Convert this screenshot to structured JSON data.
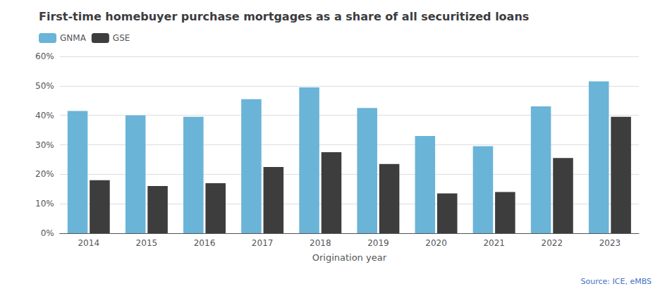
{
  "chart_data": {
    "type": "bar",
    "title": "First-time homebuyer purchase mortgages as a share of all securitized loans",
    "categories": [
      "2014",
      "2015",
      "2016",
      "2017",
      "2018",
      "2019",
      "2020",
      "2021",
      "2022",
      "2023"
    ],
    "series": [
      {
        "name": "GNMA",
        "color": "#6ab4d8",
        "values": [
          41.5,
          40.0,
          39.5,
          45.5,
          49.5,
          42.5,
          33.0,
          29.5,
          43.0,
          51.5
        ]
      },
      {
        "name": "GSE",
        "color": "#3d3d3d",
        "values": [
          18.0,
          16.0,
          17.0,
          22.5,
          27.5,
          23.5,
          13.5,
          14.0,
          25.5,
          39.5
        ]
      }
    ],
    "xlabel": "Origination year",
    "ylim": [
      0,
      60
    ],
    "yticks": [
      {
        "value": 0,
        "label": "0%"
      },
      {
        "value": 10,
        "label": "10%"
      },
      {
        "value": 20,
        "label": "20%"
      },
      {
        "value": 30,
        "label": "30%"
      },
      {
        "value": 40,
        "label": "40%"
      },
      {
        "value": 50,
        "label": "50%"
      },
      {
        "value": 60,
        "label": "60%"
      }
    ],
    "grid": true,
    "legend": "upper left",
    "annotation": "Source: ICE, eMBS"
  }
}
